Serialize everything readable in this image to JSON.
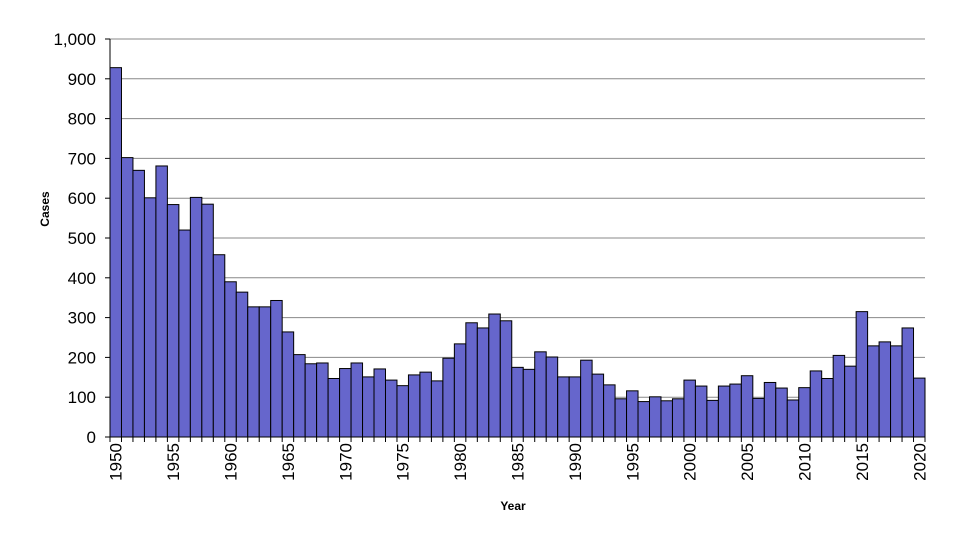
{
  "chart_data": {
    "type": "bar",
    "title": "",
    "xlabel": "Year",
    "ylabel": "Cases",
    "ylim": [
      0,
      1000
    ],
    "yticks": [
      0,
      100,
      200,
      300,
      400,
      500,
      600,
      700,
      800,
      900,
      1000
    ],
    "ytick_labels": [
      "0",
      "100",
      "200",
      "300",
      "400",
      "500",
      "600",
      "700",
      "800",
      "900",
      "1,000"
    ],
    "xtick_labels": [
      "1950",
      "1955",
      "1960",
      "1965",
      "1970",
      "1975",
      "1980",
      "1985",
      "1990",
      "1995",
      "2000",
      "2005",
      "2010",
      "2015",
      "2020"
    ],
    "grid": "horizontal",
    "bar_color": "#6666cc",
    "bar_edge_color": "#000000",
    "categories": [
      1950,
      1951,
      1952,
      1953,
      1954,
      1955,
      1956,
      1957,
      1958,
      1959,
      1960,
      1961,
      1962,
      1963,
      1964,
      1965,
      1966,
      1967,
      1968,
      1969,
      1970,
      1971,
      1972,
      1973,
      1974,
      1975,
      1976,
      1977,
      1978,
      1979,
      1980,
      1981,
      1982,
      1983,
      1984,
      1985,
      1986,
      1987,
      1988,
      1989,
      1990,
      1991,
      1992,
      1993,
      1994,
      1995,
      1996,
      1997,
      1998,
      1999,
      2000,
      2001,
      2002,
      2003,
      2004,
      2005,
      2006,
      2007,
      2008,
      2009,
      2010,
      2011,
      2012,
      2013,
      2014,
      2015,
      2016,
      2017,
      2018,
      2019,
      2020
    ],
    "values": [
      928,
      702,
      670,
      601,
      681,
      584,
      520,
      602,
      585,
      458,
      390,
      364,
      327,
      327,
      343,
      264,
      207,
      184,
      186,
      147,
      172,
      186,
      151,
      171,
      143,
      129,
      156,
      163,
      141,
      198,
      234,
      287,
      274,
      309,
      292,
      175,
      170,
      214,
      201,
      151,
      151,
      193,
      158,
      131,
      96,
      116,
      89,
      101,
      91,
      96,
      143,
      128,
      92,
      128,
      133,
      154,
      97,
      137,
      123,
      93,
      124,
      166,
      147,
      205,
      178,
      315,
      229,
      239,
      229,
      274,
      148
    ]
  }
}
